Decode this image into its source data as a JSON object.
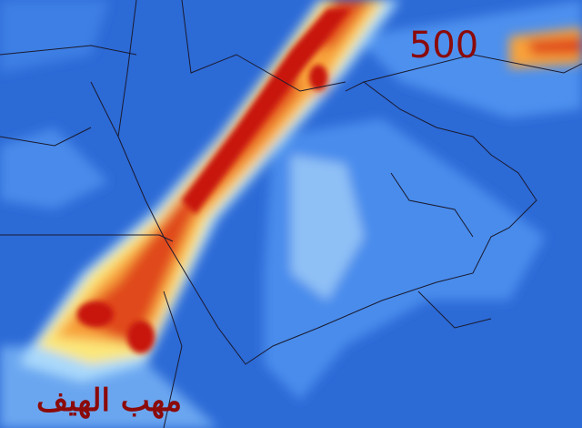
{
  "map": {
    "level_label": "500",
    "caption": "مهب الهيف"
  }
}
